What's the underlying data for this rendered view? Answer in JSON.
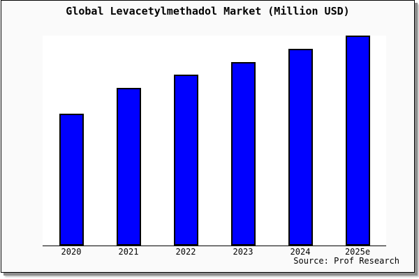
{
  "title": "Global Levacetylmethadol Market (Million USD)",
  "source": "Source: Prof Research",
  "colors": {
    "canvas_bg": "#ffffff",
    "figure_bg": "#fafafa",
    "plot_bg": "#ffffff",
    "bar_fill": "#0000ff",
    "bar_border": "#000000",
    "axis_line": "#000000",
    "frame_border": "#000000",
    "shadow": "#8e8e8e",
    "text": "#000000"
  },
  "chart_data": {
    "type": "bar",
    "title": "Global Levacetylmethadol Market (Million USD)",
    "categories": [
      "2020",
      "2021",
      "2022",
      "2023",
      "2024",
      "2025e"
    ],
    "values": [
      62.8,
      75.1,
      81.4,
      87.4,
      93.7,
      100
    ],
    "series_note_unit": "relative index, 2025e = 100 (no y-axis labels shown in chart)",
    "xlabel": "",
    "ylabel": "",
    "ylim": [
      0,
      100
    ],
    "grid": false,
    "legend": false,
    "y_axis_visible": false,
    "source_label": "Source: Prof Research"
  }
}
